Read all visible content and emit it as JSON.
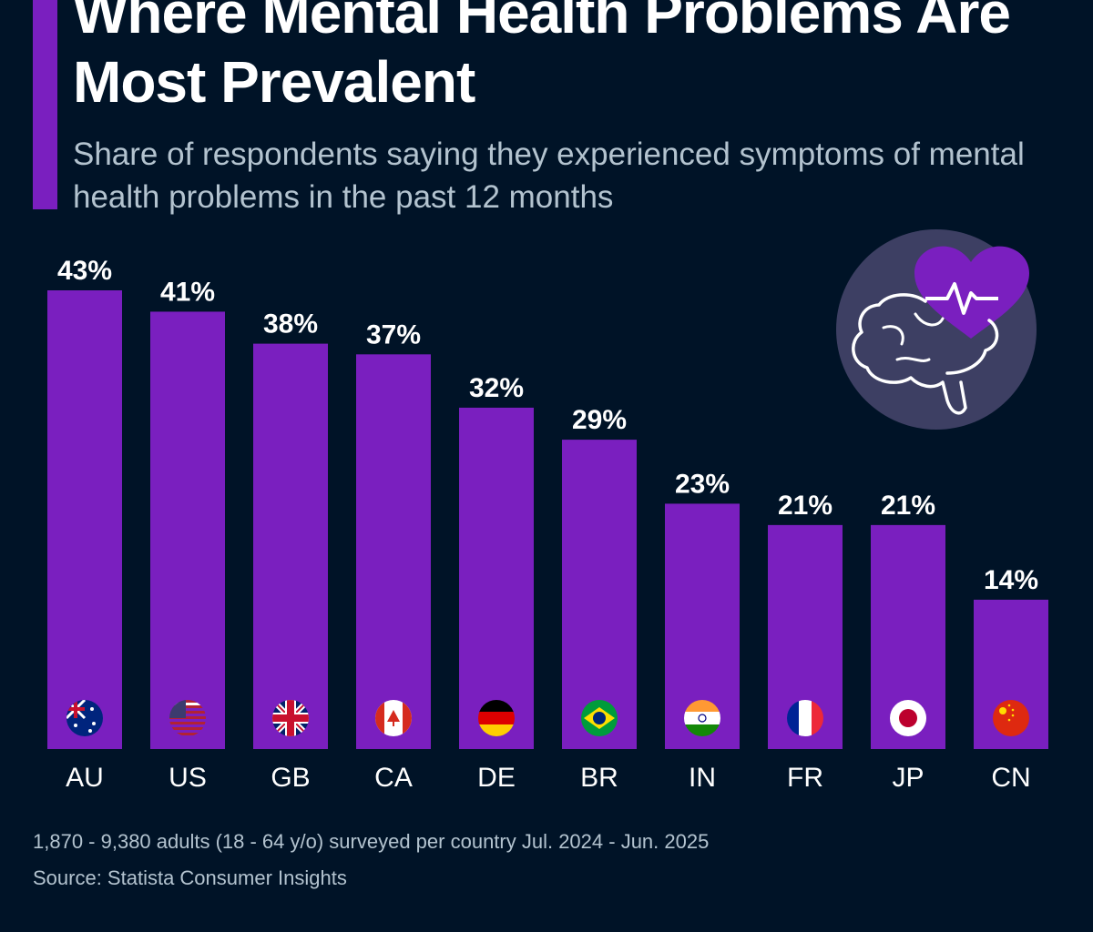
{
  "title": "Where Mental Health Problems Are Most Prevalent",
  "subtitle": "Share of respondents saying they experienced symptoms of mental health problems in the past 12 months",
  "colors": {
    "background": "#001327",
    "bar": "#7a1fbf",
    "icon_circle": "#3d3f63"
  },
  "icon": "brain-heart-pulse-icon",
  "chart_data": {
    "type": "bar",
    "categories": [
      "AU",
      "US",
      "GB",
      "CA",
      "DE",
      "BR",
      "IN",
      "FR",
      "JP",
      "CN"
    ],
    "values": [
      43,
      41,
      38,
      37,
      32,
      29,
      23,
      21,
      21,
      14
    ],
    "labels": [
      "43%",
      "41%",
      "38%",
      "37%",
      "32%",
      "29%",
      "23%",
      "21%",
      "21%",
      "14%"
    ],
    "unit": "%",
    "ylim": [
      0,
      43
    ],
    "grid": false,
    "flags": [
      "australia-flag",
      "usa-flag",
      "uk-flag",
      "canada-flag",
      "germany-flag",
      "brazil-flag",
      "india-flag",
      "france-flag",
      "japan-flag",
      "china-flag"
    ]
  },
  "footer": {
    "note": "1,870 - 9,380 adults (18 - 64 y/o) surveyed per country Jul. 2024 - Jun. 2025",
    "source": "Source: Statista Consumer Insights"
  }
}
